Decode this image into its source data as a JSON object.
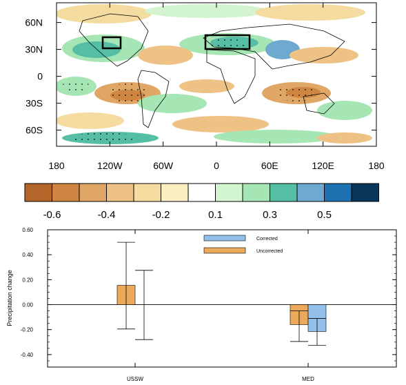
{
  "map": {
    "lat_labels": [
      "60N",
      "30N",
      "0",
      "30S",
      "60S"
    ],
    "lat_values": [
      60,
      30,
      0,
      -30,
      -60
    ],
    "lon_labels": [
      "180",
      "120W",
      "60W",
      "0",
      "60E",
      "120E",
      "180"
    ],
    "lon_values": [
      -180,
      -120,
      -60,
      0,
      60,
      120,
      180
    ],
    "lat_range": [
      -78,
      82
    ],
    "lon_range": [
      -180,
      180
    ]
  },
  "colorbar": {
    "colors": [
      "#b5652a",
      "#cf8642",
      "#e0a665",
      "#eec285",
      "#f4dba0",
      "#fbf0c2",
      "#ffffff",
      "#d2f5cf",
      "#a6e6b4",
      "#57bea6",
      "#6ea9cf",
      "#1f72b1",
      "#08375b"
    ],
    "labels": [
      "-0.6",
      "-0.4",
      "-0.2",
      "0.1",
      "0.3",
      "0.5"
    ]
  },
  "chart_data": {
    "type": "bar",
    "categories": [
      "USSW",
      "MED"
    ],
    "ylabel": "Precipitation change",
    "ylim": [
      -0.5,
      0.6
    ],
    "yticks": [
      "0.60",
      "0.40",
      "0.20",
      "0.00",
      "-0.20",
      "-0.40"
    ],
    "ytick_values": [
      0.6,
      0.4,
      0.2,
      0.0,
      -0.2,
      -0.4
    ],
    "series": [
      {
        "name": "Uncorrected",
        "color": "#eda95a",
        "values": [
          0.155,
          -0.16
        ],
        "error_low": [
          -0.195,
          -0.295
        ],
        "error_high": [
          0.5,
          -0.05
        ],
        "inner_low": [
          0.0,
          -0.16
        ],
        "inner_high": [
          0.155,
          -0.05
        ]
      },
      {
        "name": "Corrected",
        "color": "#93c0e8",
        "values": [
          null,
          -0.215
        ],
        "error_low": [
          -0.28,
          -0.325
        ],
        "error_high": [
          0.275,
          -0.11
        ],
        "inner_low": [
          null,
          -0.215
        ],
        "inner_high": [
          null,
          -0.11
        ]
      }
    ]
  }
}
